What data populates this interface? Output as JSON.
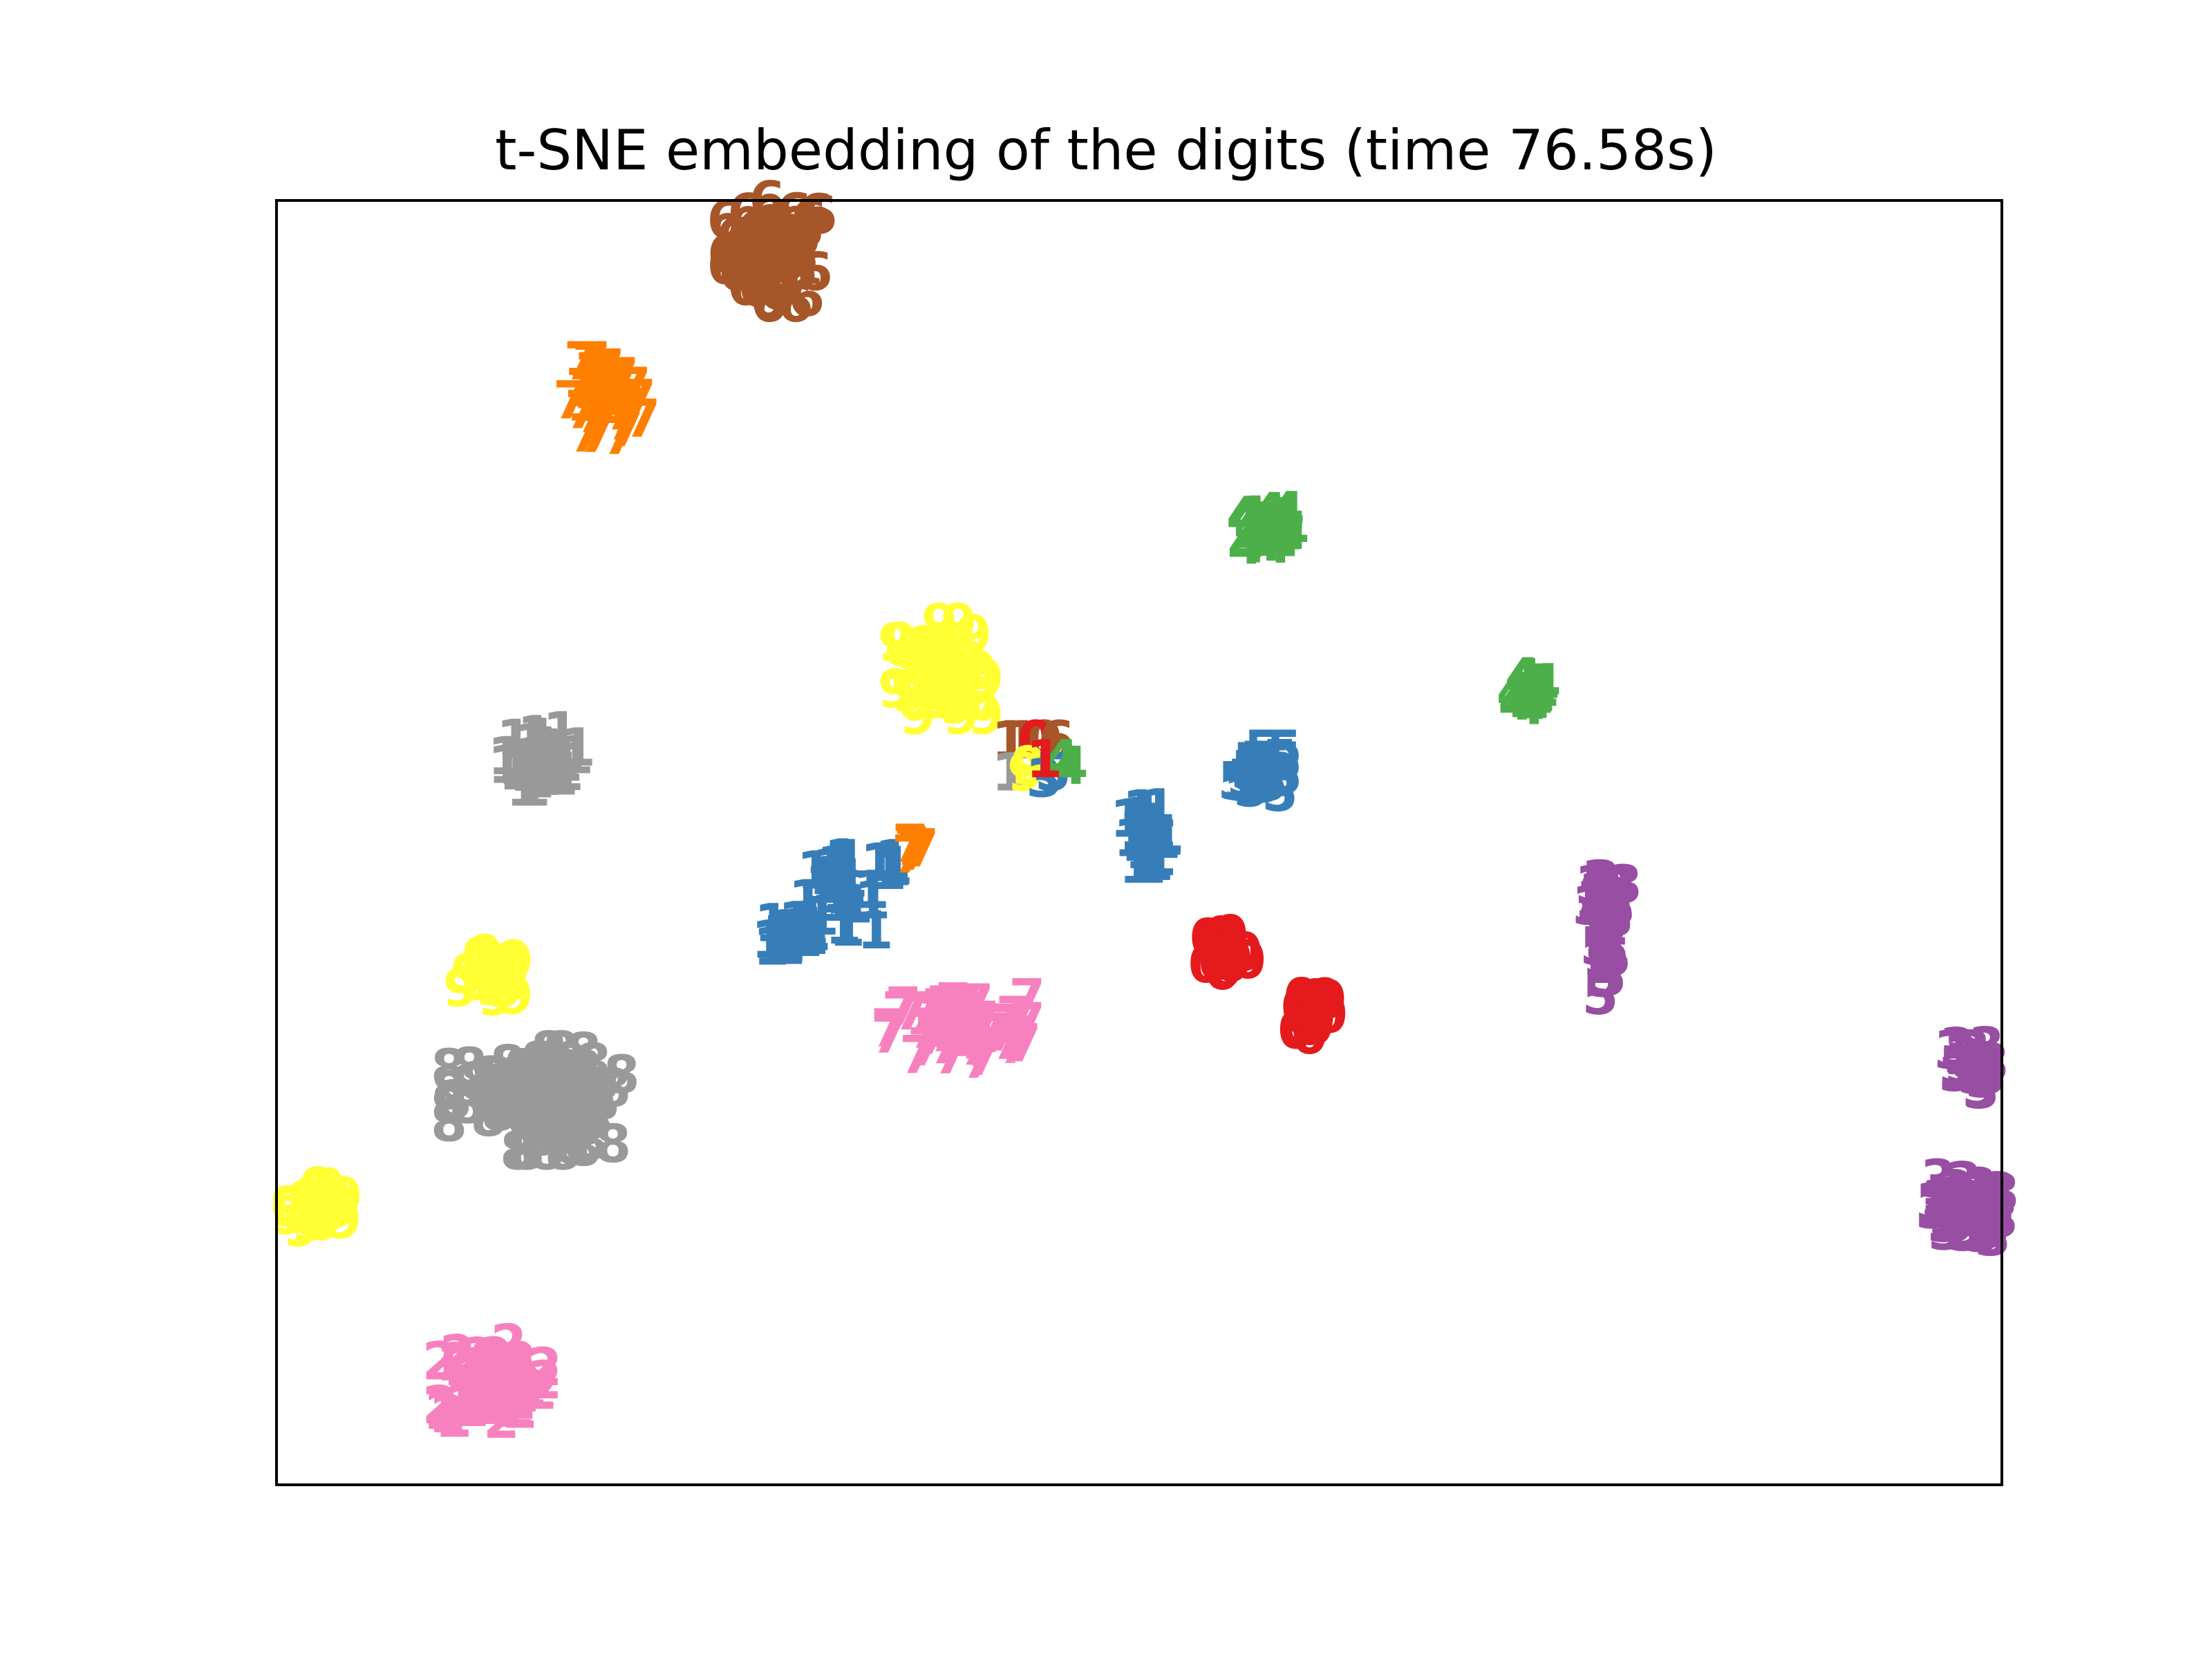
{
  "chart_data": {
    "type": "scatter",
    "title": "t-SNE embedding of the digits (time 76.58s)",
    "xlabel": "",
    "ylabel": "",
    "xticks": [],
    "yticks": [],
    "xlim": [
      0,
      1
    ],
    "ylim": [
      0,
      1
    ],
    "grid": false,
    "legend": "none",
    "marker": "digit text label",
    "colormap": "Set1",
    "colors": {
      "0": "#e41a1c",
      "1": "#377eb8",
      "2": "#4daf4a",
      "3": "#984ea3",
      "4": "#ff7f00",
      "5": "#ffff33",
      "6": "#a65628",
      "7": "#f781bf",
      "8": "#999999"
    },
    "clusters": [
      {
        "digit": "6",
        "color_key": "6",
        "center": [
          0.29,
          0.96
        ],
        "spread": [
          0.03,
          0.04
        ],
        "count": 60
      },
      {
        "digit": "7",
        "color_key": "4",
        "center": [
          0.19,
          0.84
        ],
        "spread": [
          0.022,
          0.035
        ],
        "count": 40
      },
      {
        "digit": "4",
        "color_key": "2",
        "center": [
          0.575,
          0.745
        ],
        "spread": [
          0.014,
          0.018
        ],
        "count": 28
      },
      {
        "digit": "4",
        "color_key": "2",
        "center": [
          0.725,
          0.62
        ],
        "spread": [
          0.014,
          0.016
        ],
        "count": 24
      },
      {
        "digit": "9",
        "color_key": "5",
        "center": [
          0.385,
          0.635
        ],
        "spread": [
          0.026,
          0.036
        ],
        "count": 55
      },
      {
        "digit": "5",
        "color_key": "1",
        "center": [
          0.57,
          0.555
        ],
        "spread": [
          0.014,
          0.02
        ],
        "count": 32
      },
      {
        "digit": "1",
        "color_key": "8",
        "center": [
          0.155,
          0.565
        ],
        "spread": [
          0.022,
          0.022
        ],
        "count": 32
      },
      {
        "digit": "1",
        "color_key": "1",
        "center": [
          0.505,
          0.505
        ],
        "spread": [
          0.013,
          0.022
        ],
        "count": 30
      },
      {
        "digit": "1",
        "color_key": "1",
        "center": [
          0.325,
          0.46
        ],
        "spread": [
          0.022,
          0.028
        ],
        "count": 30
      },
      {
        "digit": "1",
        "color_key": "1",
        "center": [
          0.3,
          0.43
        ],
        "spread": [
          0.018,
          0.018
        ],
        "count": 22
      },
      {
        "digit": "1",
        "color_key": "1",
        "center": [
          0.355,
          0.485
        ],
        "spread": [
          0.006,
          0.012
        ],
        "count": 8
      },
      {
        "digit": "7",
        "color_key": "4",
        "center": [
          0.37,
          0.495
        ],
        "spread": [
          0.006,
          0.008
        ],
        "count": 6
      },
      {
        "digit": "3",
        "color_key": "3",
        "center": [
          0.77,
          0.455
        ],
        "spread": [
          0.014,
          0.016
        ],
        "count": 26
      },
      {
        "digit": "5",
        "color_key": "3",
        "center": [
          0.77,
          0.4
        ],
        "spread": [
          0.006,
          0.026
        ],
        "count": 12
      },
      {
        "digit": "9",
        "color_key": "5",
        "center": [
          0.125,
          0.395
        ],
        "spread": [
          0.018,
          0.018
        ],
        "count": 30
      },
      {
        "digit": "8",
        "color_key": "8",
        "center": [
          0.15,
          0.31
        ],
        "spread": [
          0.05,
          0.028
        ],
        "count": 60
      },
      {
        "digit": "8",
        "color_key": "8",
        "center": [
          0.165,
          0.295
        ],
        "spread": [
          0.03,
          0.035
        ],
        "count": 45
      },
      {
        "digit": "3",
        "color_key": "8",
        "center": [
          0.175,
          0.29
        ],
        "spread": [
          0.012,
          0.015
        ],
        "count": 12
      },
      {
        "digit": "7",
        "color_key": "7",
        "center": [
          0.395,
          0.355
        ],
        "spread": [
          0.04,
          0.024
        ],
        "count": 65
      },
      {
        "digit": "0",
        "color_key": "0",
        "center": [
          0.55,
          0.415
        ],
        "spread": [
          0.013,
          0.02
        ],
        "count": 26
      },
      {
        "digit": "0",
        "color_key": "0",
        "center": [
          0.6,
          0.37
        ],
        "spread": [
          0.013,
          0.02
        ],
        "count": 26
      },
      {
        "digit": "9",
        "color_key": "5",
        "center": [
          0.025,
          0.215
        ],
        "spread": [
          0.018,
          0.018
        ],
        "count": 30
      },
      {
        "digit": "2",
        "color_key": "7",
        "center": [
          0.125,
          0.08
        ],
        "spread": [
          0.03,
          0.03
        ],
        "count": 60
      },
      {
        "digit": "3",
        "color_key": "3",
        "center": [
          0.98,
          0.325
        ],
        "spread": [
          0.014,
          0.018
        ],
        "count": 24
      },
      {
        "digit": "3",
        "color_key": "3",
        "center": [
          0.98,
          0.215
        ],
        "spread": [
          0.02,
          0.024
        ],
        "count": 45
      }
    ],
    "points": [
      {
        "label": "1",
        "x": 0.425,
        "y": 0.58,
        "color_key": "6"
      },
      {
        "label": "1",
        "x": 0.432,
        "y": 0.58,
        "color_key": "6"
      },
      {
        "label": "0",
        "x": 0.445,
        "y": 0.58,
        "color_key": "6"
      },
      {
        "label": "0",
        "x": 0.44,
        "y": 0.58,
        "color_key": "0"
      },
      {
        "label": "6",
        "x": 0.452,
        "y": 0.58,
        "color_key": "6"
      },
      {
        "label": "1",
        "x": 0.425,
        "y": 0.555,
        "color_key": "8"
      },
      {
        "label": "9",
        "x": 0.436,
        "y": 0.56,
        "color_key": "5"
      },
      {
        "label": "9",
        "x": 0.434,
        "y": 0.555,
        "color_key": "5"
      },
      {
        "label": "5",
        "x": 0.45,
        "y": 0.555,
        "color_key": "1"
      },
      {
        "label": "3",
        "x": 0.445,
        "y": 0.55,
        "color_key": "1"
      },
      {
        "label": "4",
        "x": 0.46,
        "y": 0.56,
        "color_key": "2"
      },
      {
        "label": "4",
        "x": 0.455,
        "y": 0.565,
        "color_key": "2"
      },
      {
        "label": "1",
        "x": 0.445,
        "y": 0.565,
        "color_key": "0"
      }
    ]
  }
}
